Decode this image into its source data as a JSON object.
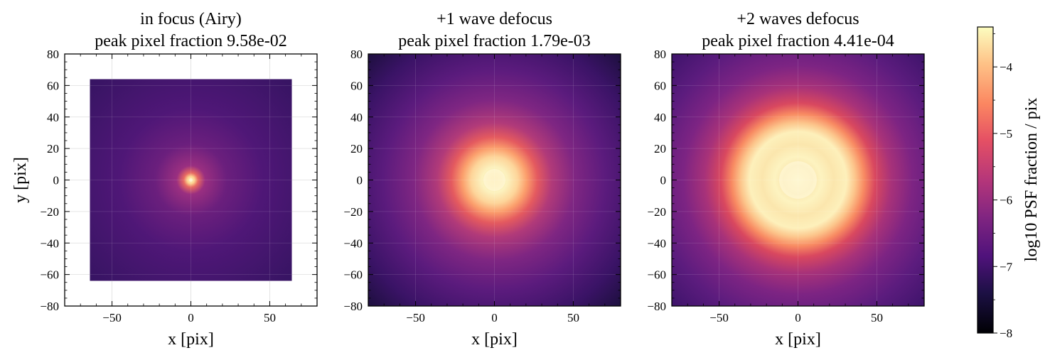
{
  "chart_data": {
    "type": "heatmap",
    "colormap": "magma",
    "colorbar": {
      "label": "log10 PSF fraction / pix",
      "range": [
        -8,
        -3.4
      ],
      "ticks": [
        -8,
        -7,
        -6,
        -5,
        -4
      ],
      "tick_labels": [
        "−8",
        "−7",
        "−6",
        "−5",
        "−4"
      ]
    },
    "panels": [
      {
        "title_line1": "in focus (Airy)",
        "title_line2": "peak pixel fraction 9.58e-02",
        "peak_fraction": 0.0958,
        "xlabel": "x [pix]",
        "ylabel": "y [pix]",
        "xlim": [
          -80,
          80
        ],
        "ylim": [
          -80,
          80
        ],
        "image_extent": [
          -64,
          64,
          -64,
          64
        ],
        "core_radius": 3,
        "grid": true,
        "xticks": [
          -50,
          0,
          50
        ],
        "xtick_labels": [
          "−50",
          "0",
          "50"
        ],
        "yticks": [
          -80,
          -60,
          -40,
          -20,
          0,
          20,
          40,
          60,
          80
        ],
        "ytick_labels": [
          "−80",
          "−60",
          "−40",
          "−20",
          "0",
          "20",
          "40",
          "60",
          "80"
        ]
      },
      {
        "title_line1": "+1 wave defocus",
        "title_line2": "peak pixel fraction 1.79e-03",
        "peak_fraction": 0.00179,
        "xlabel": "x [pix]",
        "ylabel": "",
        "xlim": [
          -80,
          80
        ],
        "ylim": [
          -80,
          80
        ],
        "image_extent": [
          -80,
          80,
          -80,
          80
        ],
        "core_radius": 20,
        "grid": true,
        "xticks": [
          -50,
          0,
          50
        ],
        "xtick_labels": [
          "−50",
          "0",
          "50"
        ],
        "yticks": [
          -80,
          -60,
          -40,
          -20,
          0,
          20,
          40,
          60,
          80
        ],
        "ytick_labels": [
          "−80",
          "−60",
          "−40",
          "−20",
          "0",
          "20",
          "40",
          "60",
          "80"
        ]
      },
      {
        "title_line1": "+2 waves defocus",
        "title_line2": "peak pixel fraction 4.41e-04",
        "peak_fraction": 0.000441,
        "xlabel": "x [pix]",
        "ylabel": "",
        "xlim": [
          -80,
          80
        ],
        "ylim": [
          -80,
          80
        ],
        "image_extent": [
          -80,
          80,
          -80,
          80
        ],
        "core_radius": 34,
        "grid": true,
        "xticks": [
          -50,
          0,
          50
        ],
        "xtick_labels": [
          "−50",
          "0",
          "50"
        ],
        "yticks": [
          -80,
          -60,
          -40,
          -20,
          0,
          20,
          40,
          60,
          80
        ],
        "ytick_labels": [
          "−80",
          "−60",
          "−40",
          "−20",
          "0",
          "20",
          "40",
          "60",
          "80"
        ]
      }
    ]
  }
}
